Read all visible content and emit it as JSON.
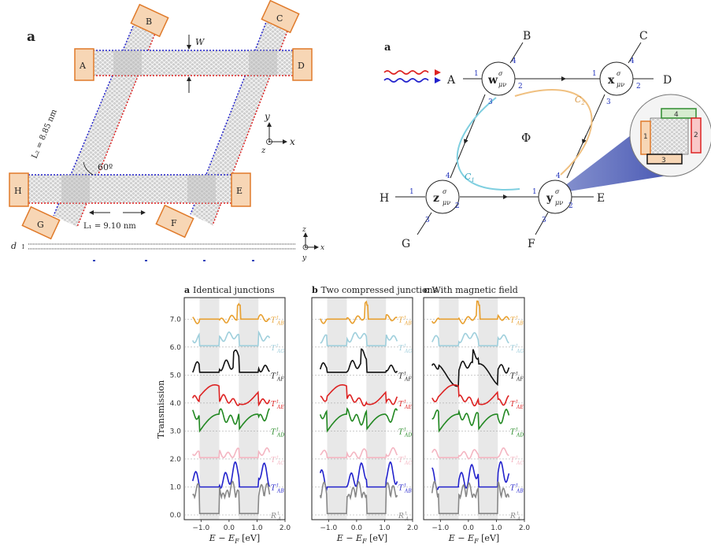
{
  "panel_top_left": {
    "panel_letter": "a",
    "terminals": [
      "A",
      "B",
      "C",
      "D",
      "E",
      "F",
      "G",
      "H"
    ],
    "width_label": "W",
    "l2_label": "L₂ = 8.85 nm",
    "l1_label": "L₁ = 9.10 nm",
    "angle_label": "60º",
    "d_label": "d",
    "axes": {
      "y": "y",
      "x": "x",
      "z": "z"
    }
  },
  "panel_top_right": {
    "panel_letter": "a",
    "nodes": [
      {
        "name": "w",
        "label": "w",
        "sup": "σ",
        "sub": "μν"
      },
      {
        "name": "x",
        "label": "x",
        "sup": "σ",
        "sub": "μν"
      },
      {
        "name": "z",
        "label": "z",
        "sup": "σ",
        "sub": "μν"
      },
      {
        "name": "y",
        "label": "y",
        "sup": "σ",
        "sub": "μν"
      }
    ],
    "terminals": [
      "A",
      "B",
      "C",
      "D",
      "E",
      "F",
      "G",
      "H"
    ],
    "port_numbers": [
      "1",
      "2",
      "3",
      "4"
    ],
    "phi": "Φ",
    "c1": "C",
    "c1_sub": "1",
    "c2": "C",
    "c2_sub": "2"
  },
  "plots": {
    "ylabel": "Transmission",
    "xlabel": "E − E",
    "xlabel_sub": "F",
    "xlabel_unit": "[eV]",
    "panels": [
      {
        "letter": "a",
        "title": "Identical junctions"
      },
      {
        "letter": "b",
        "title": "Two compressed junctions"
      },
      {
        "letter": "c",
        "title": "With magnetic field"
      }
    ],
    "yticks": [
      "0.0",
      "1.0",
      "2.0",
      "3.0",
      "4.0",
      "5.0",
      "6.0",
      "7.0"
    ],
    "xticks": [
      "−1.0",
      "0.0",
      "1.0",
      "2.0"
    ],
    "series_labels": [
      {
        "main": "T",
        "sup": "↑",
        "sub": "AB",
        "color": "#e8a030"
      },
      {
        "main": "T",
        "sup": "↑",
        "sub": "AG",
        "color": "#9fcfdc"
      },
      {
        "main": "T",
        "sup": "↑",
        "sub": "AF",
        "color": "#111111"
      },
      {
        "main": "T",
        "sup": "↑",
        "sub": "AE",
        "color": "#dd2222"
      },
      {
        "main": "T",
        "sup": "↑",
        "sub": "AD",
        "color": "#228822"
      },
      {
        "main": "T",
        "sup": "↑",
        "sub": "AC",
        "color": "#f4b6c2"
      },
      {
        "main": "T",
        "sup": "↑",
        "sub": "AB",
        "color": "#2222cc"
      },
      {
        "main": "R",
        "sup": "↑",
        "sub": "A",
        "color": "#888888"
      }
    ]
  }
}
